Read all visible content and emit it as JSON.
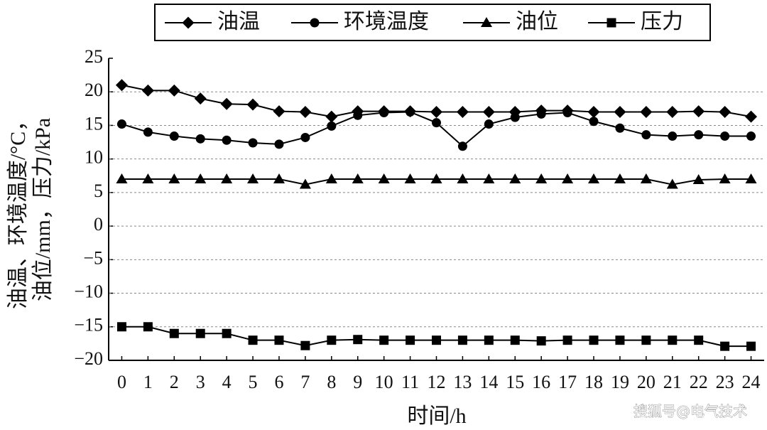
{
  "chart_data": {
    "type": "line",
    "legend_labels_note_free": true,
    "x": [
      0,
      1,
      2,
      3,
      4,
      5,
      6,
      7,
      8,
      9,
      10,
      11,
      12,
      13,
      14,
      15,
      16,
      17,
      18,
      19,
      20,
      21,
      22,
      23,
      24
    ],
    "xlim": [
      -0.5,
      24.5
    ],
    "xticks": [
      0,
      1,
      2,
      3,
      4,
      5,
      6,
      7,
      8,
      9,
      10,
      11,
      12,
      13,
      14,
      15,
      16,
      17,
      18,
      19,
      20,
      21,
      22,
      23,
      24
    ],
    "ylim": [
      -20,
      25
    ],
    "yticks": [
      {
        "value": -20,
        "label": "−20"
      },
      {
        "value": -15,
        "label": "−15"
      },
      {
        "value": -10,
        "label": "−10"
      },
      {
        "value": -5,
        "label": "−5"
      },
      0,
      5,
      10,
      15,
      20,
      25
    ],
    "grid": true,
    "xlabel": "时间/h",
    "ylabel": [
      "油温、环境温度/°C，",
      "油位/mm，压力/kPa"
    ],
    "watermark": "搜狐号@电气技术",
    "series": [
      {
        "name": "油温",
        "color": "#000000",
        "marker": "diamond",
        "values": [
          21,
          20.2,
          20.2,
          19,
          18.2,
          18.1,
          17.1,
          17,
          16.3,
          17.1,
          17.1,
          17.1,
          17,
          17,
          17,
          17,
          17.2,
          17.2,
          17,
          17,
          17,
          17,
          17.1,
          17,
          16.3
        ]
      },
      {
        "name": "环境温度",
        "color": "#000000",
        "marker": "circle",
        "values": [
          15.2,
          14,
          13.4,
          13,
          12.8,
          12.4,
          12.2,
          13.2,
          14.9,
          16.5,
          16.9,
          17,
          15.4,
          11.9,
          15.2,
          16.2,
          16.7,
          16.9,
          15.6,
          14.6,
          13.6,
          13.4,
          13.6,
          13.4,
          13.4
        ]
      },
      {
        "name": "油位",
        "color": "#000000",
        "marker": "triangle",
        "values": [
          7,
          7,
          7,
          7,
          7,
          7,
          7,
          6.2,
          7,
          7,
          7,
          7,
          7,
          7,
          7,
          7,
          7,
          7,
          7,
          7,
          7,
          6.2,
          6.9,
          7,
          7
        ]
      },
      {
        "name": "压力",
        "color": "#000000",
        "marker": "square",
        "values": [
          -15,
          -15,
          -16,
          -16,
          -16,
          -17,
          -17,
          -17.8,
          -17,
          -16.9,
          -17,
          -17,
          -17,
          -17,
          -17,
          -17,
          -17.1,
          -17,
          -17,
          -17,
          -17,
          -17,
          -17,
          -17.9,
          -17.9
        ]
      }
    ]
  }
}
